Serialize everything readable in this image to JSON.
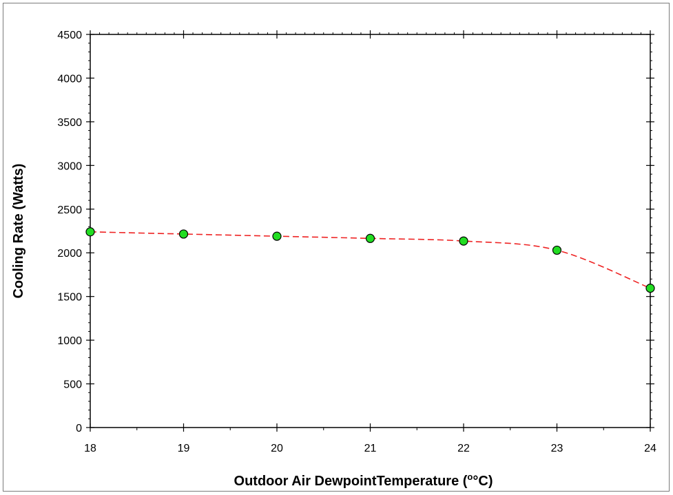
{
  "chart_data": {
    "type": "line",
    "title": "",
    "xlabel": "Outdoor Air  DewpointTemperature (",
    "xlabel_unit": "°C)",
    "ylabel": "Cooling Rate (Watts)",
    "xlim": [
      18,
      24
    ],
    "ylim": [
      0,
      4500
    ],
    "x_ticks": [
      18,
      19,
      20,
      21,
      22,
      23,
      24
    ],
    "y_ticks": [
      0,
      500,
      1000,
      1500,
      2000,
      2500,
      3000,
      3500,
      4000,
      4500
    ],
    "grid": false,
    "legend": "none",
    "series": [
      {
        "x": [
          18,
          19,
          20,
          21,
          22,
          23,
          24
        ],
        "y": [
          2240,
          2215,
          2190,
          2165,
          2135,
          2030,
          1595
        ],
        "marker_color": "#22dd22",
        "line_color": "#ee2222",
        "line_style": "dashed"
      }
    ]
  }
}
